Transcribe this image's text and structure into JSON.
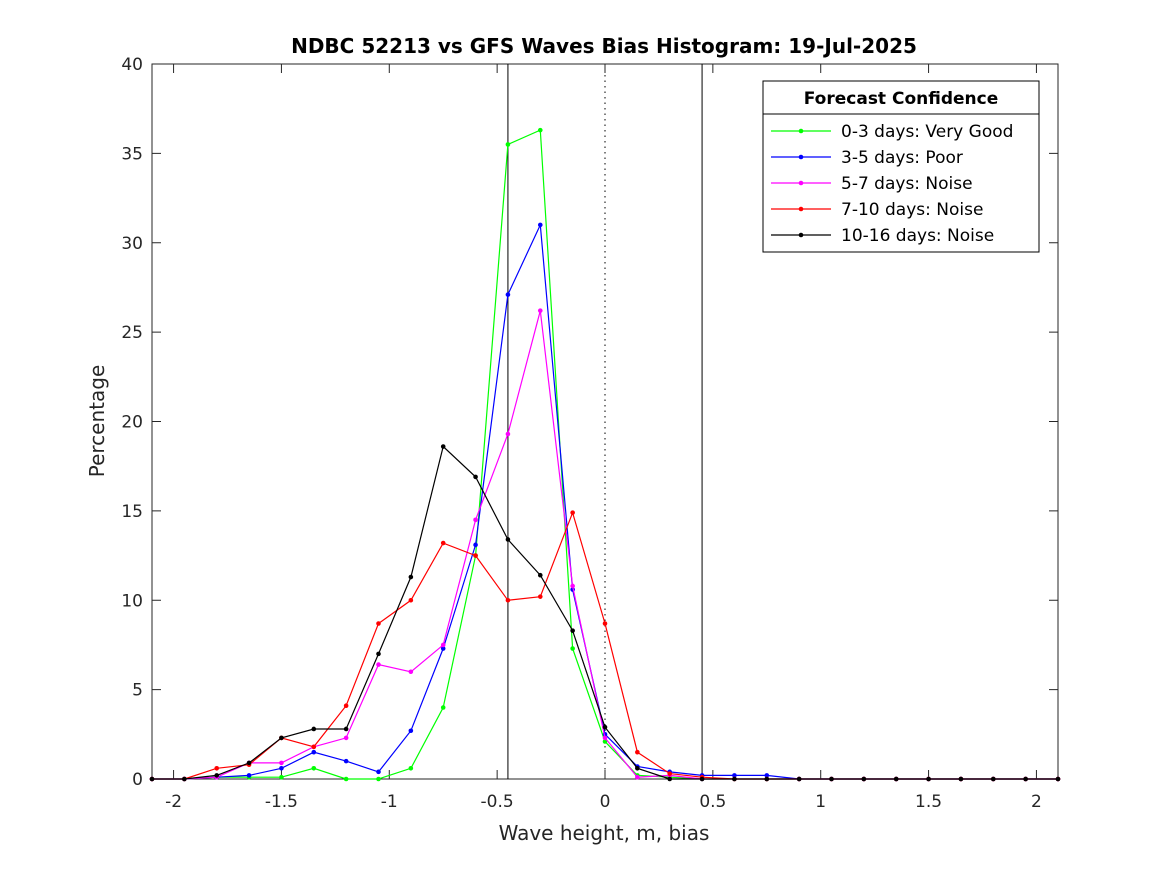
{
  "chart_data": {
    "type": "line",
    "title": "NDBC 52213 vs GFS Waves Bias Histogram: 19-Jul-2025",
    "xlabel": "Wave height, m, bias",
    "ylabel": "Percentage",
    "xlim": [
      -2.1,
      2.1
    ],
    "ylim": [
      0,
      40
    ],
    "xticks": [
      -2,
      -1.5,
      -1,
      -0.5,
      0,
      0.5,
      1,
      1.5,
      2
    ],
    "xtick_labels": [
      "-2",
      "-1.5",
      "-1",
      "-0.5",
      "0",
      "0.5",
      "1",
      "1.5",
      "2"
    ],
    "yticks": [
      0,
      5,
      10,
      15,
      20,
      25,
      30,
      35,
      40
    ],
    "ytick_labels": [
      "0",
      "5",
      "10",
      "15",
      "20",
      "25",
      "30",
      "35",
      "40"
    ],
    "grid": false,
    "legend": {
      "title": "Forecast Confidence",
      "location": "top-right"
    },
    "reference_lines": [
      {
        "x": -0.45,
        "style": "solid"
      },
      {
        "x": 0,
        "style": "dotted"
      },
      {
        "x": 0.45,
        "style": "solid"
      }
    ],
    "x": [
      -2.1,
      -1.95,
      -1.8,
      -1.65,
      -1.5,
      -1.35,
      -1.2,
      -1.05,
      -0.9,
      -0.75,
      -0.6,
      -0.45,
      -0.3,
      -0.15,
      0,
      0.15,
      0.3,
      0.45,
      0.6,
      0.75,
      0.9,
      1.05,
      1.2,
      1.35,
      1.5,
      1.65,
      1.8,
      1.95,
      2.1
    ],
    "series": [
      {
        "name": "0-3 days: Very Good",
        "color": "#00ff00",
        "values": [
          0,
          0,
          0.1,
          0.1,
          0.1,
          0.6,
          0,
          0,
          0.6,
          4.0,
          12.5,
          35.5,
          36.3,
          7.3,
          2.1,
          0.2,
          0.1,
          0,
          0,
          0,
          0,
          0,
          0,
          0,
          0,
          0,
          0,
          0,
          0
        ]
      },
      {
        "name": "3-5 days: Poor",
        "color": "#0000ff",
        "values": [
          0,
          0,
          0.1,
          0.2,
          0.6,
          1.5,
          1.0,
          0.4,
          2.7,
          7.3,
          13.1,
          27.1,
          31.0,
          10.6,
          2.5,
          0.7,
          0.4,
          0.2,
          0.2,
          0.2,
          0,
          0,
          0,
          0,
          0,
          0,
          0,
          0,
          0
        ]
      },
      {
        "name": "5-7 days: Noise",
        "color": "#ff00ff",
        "values": [
          0,
          0,
          0.1,
          0.9,
          0.9,
          1.8,
          2.3,
          6.4,
          6.0,
          7.5,
          14.5,
          19.3,
          26.2,
          10.8,
          2.3,
          0.1,
          0.2,
          0,
          0,
          0,
          0,
          0,
          0,
          0,
          0,
          0,
          0,
          0,
          0
        ]
      },
      {
        "name": "7-10 days: Noise",
        "color": "#ff0000",
        "values": [
          0,
          0,
          0.6,
          0.8,
          2.3,
          1.8,
          4.1,
          8.7,
          10.0,
          13.2,
          12.5,
          10.0,
          10.2,
          14.9,
          8.7,
          1.5,
          0.3,
          0.1,
          0,
          0,
          0,
          0,
          0,
          0,
          0,
          0,
          0,
          0,
          0
        ]
      },
      {
        "name": "10-16 days: Noise",
        "color": "#000000",
        "values": [
          0,
          0,
          0.2,
          0.9,
          2.3,
          2.8,
          2.8,
          7.0,
          11.3,
          18.6,
          16.9,
          13.4,
          11.4,
          8.3,
          2.9,
          0.6,
          0,
          0,
          0,
          0,
          0,
          0,
          0,
          0,
          0,
          0,
          0,
          0,
          0
        ]
      }
    ]
  }
}
